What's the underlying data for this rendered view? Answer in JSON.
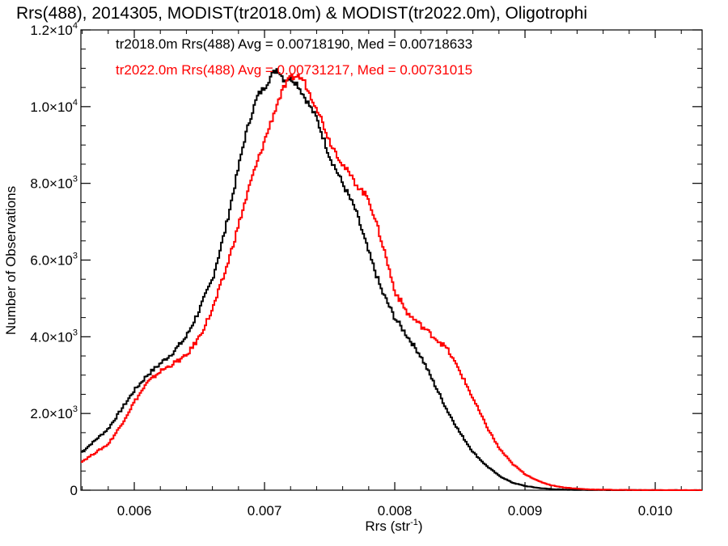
{
  "chart_data": {
    "type": "line",
    "title": "Rrs(488), 2014305, MODIST(tr2018.0m) & MODIST(tr2022.0m), Oligotrophi",
    "xlabel": "Rrs (str",
    "xlabel_sup": "-1",
    "xlabel_close": ")",
    "ylabel": "Number of Observations",
    "xlim": [
      0.00559,
      0.01036
    ],
    "ylim": [
      0,
      12000
    ],
    "x_ticks": [
      {
        "value": 0.006,
        "label": "0.006"
      },
      {
        "value": 0.007,
        "label": "0.007"
      },
      {
        "value": 0.008,
        "label": "0.008"
      },
      {
        "value": 0.009,
        "label": "0.009"
      },
      {
        "value": 0.01,
        "label": "0.010"
      }
    ],
    "y_ticks": [
      {
        "value": 0,
        "mant": "0",
        "exp": ""
      },
      {
        "value": 2000,
        "mant": "2.0×10",
        "exp": "3"
      },
      {
        "value": 4000,
        "mant": "4.0×10",
        "exp": "3"
      },
      {
        "value": 6000,
        "mant": "6.0×10",
        "exp": "3"
      },
      {
        "value": 8000,
        "mant": "8.0×10",
        "exp": "3"
      },
      {
        "value": 10000,
        "mant": "1.0×10",
        "exp": "4"
      },
      {
        "value": 12000,
        "mant": "1.2×10",
        "exp": "4"
      }
    ],
    "grid": false,
    "series": [
      {
        "name": "tr2018.0m",
        "color": "#000000",
        "stats_text": "tr2018.0m Rrs(488) Avg = 0.00718190, Med = 0.00718633",
        "x": [
          0.0056,
          0.0058,
          0.0059,
          0.006,
          0.0061,
          0.0062,
          0.0063,
          0.0064,
          0.0065,
          0.0066,
          0.0067,
          0.00675,
          0.0068,
          0.00685,
          0.0069,
          0.00695,
          0.007,
          0.00705,
          0.0071,
          0.00715,
          0.0072,
          0.00725,
          0.0073,
          0.00735,
          0.0074,
          0.0075,
          0.0076,
          0.0077,
          0.0078,
          0.0079,
          0.008,
          0.0081,
          0.0082,
          0.0083,
          0.0084,
          0.0085,
          0.0086,
          0.0087,
          0.0088,
          0.0089,
          0.009,
          0.0091,
          0.0092,
          0.0093,
          0.0094,
          0.0096,
          0.0098,
          0.01,
          0.01036
        ],
        "y": [
          1000,
          1600,
          2100,
          2600,
          3000,
          3300,
          3600,
          4000,
          4700,
          5500,
          6800,
          7600,
          8400,
          9200,
          9800,
          10300,
          10500,
          10800,
          11000,
          10700,
          10750,
          10600,
          10300,
          10000,
          9700,
          8700,
          8000,
          7300,
          6200,
          5200,
          4500,
          4000,
          3500,
          2800,
          2100,
          1500,
          1000,
          650,
          380,
          200,
          110,
          60,
          30,
          15,
          8,
          3,
          1,
          0,
          0
        ]
      },
      {
        "name": "tr2022.0m",
        "color": "#ff0000",
        "stats_text": "tr2022.0m Rrs(488) Avg = 0.00731217, Med = 0.00731015",
        "x": [
          0.0056,
          0.0058,
          0.0059,
          0.006,
          0.0061,
          0.0062,
          0.0063,
          0.0064,
          0.0065,
          0.0066,
          0.0067,
          0.0068,
          0.0069,
          0.007,
          0.00705,
          0.0071,
          0.00715,
          0.0072,
          0.00725,
          0.0073,
          0.00735,
          0.0074,
          0.0075,
          0.0076,
          0.0077,
          0.0078,
          0.0079,
          0.008,
          0.0081,
          0.0082,
          0.0083,
          0.0084,
          0.0085,
          0.0086,
          0.0087,
          0.0088,
          0.0089,
          0.009,
          0.0091,
          0.0092,
          0.0093,
          0.0094,
          0.0095,
          0.0097,
          0.0099,
          0.0101,
          0.01036
        ],
        "y": [
          750,
          1200,
          1700,
          2300,
          2800,
          3100,
          3300,
          3500,
          4000,
          4700,
          5700,
          6900,
          8100,
          9100,
          9600,
          10100,
          10500,
          10750,
          10800,
          10700,
          10300,
          10000,
          9100,
          8500,
          8000,
          7600,
          6500,
          5200,
          4600,
          4300,
          4000,
          3700,
          3100,
          2400,
          1700,
          1100,
          700,
          420,
          240,
          130,
          70,
          40,
          20,
          8,
          3,
          1,
          0
        ]
      }
    ]
  }
}
